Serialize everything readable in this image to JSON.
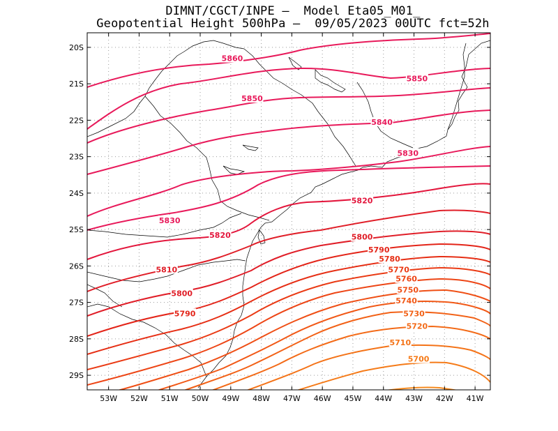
{
  "header": {
    "line1": "DIMNT/CGCT/INPE –  Model Eta05_M01_",
    "line2": "Geopotential Height 500hPa –  09/05/2023 00UTC fct=52h"
  },
  "map": {
    "lon_range": [
      -53.7,
      -40.5
    ],
    "lat_range": [
      -29.4,
      -19.6
    ],
    "lat_ticks": [
      {
        "lat": -20,
        "label": "20S"
      },
      {
        "lat": -21,
        "label": "21S"
      },
      {
        "lat": -22,
        "label": "22S"
      },
      {
        "lat": -23,
        "label": "23S"
      },
      {
        "lat": -24,
        "label": "24S"
      },
      {
        "lat": -25,
        "label": "25S"
      },
      {
        "lat": -26,
        "label": "26S"
      },
      {
        "lat": -27,
        "label": "27S"
      },
      {
        "lat": -28,
        "label": "28S"
      },
      {
        "lat": -29,
        "label": "29S"
      }
    ],
    "lon_ticks": [
      {
        "lon": -53,
        "label": "53W"
      },
      {
        "lon": -52,
        "label": "52W"
      },
      {
        "lon": -51,
        "label": "51W"
      },
      {
        "lon": -50,
        "label": "50W"
      },
      {
        "lon": -49,
        "label": "49W"
      },
      {
        "lon": -48,
        "label": "48W"
      },
      {
        "lon": -47,
        "label": "47W"
      },
      {
        "lon": -46,
        "label": "46W"
      },
      {
        "lon": -45,
        "label": "45W"
      },
      {
        "lon": -44,
        "label": "44W"
      },
      {
        "lon": -43,
        "label": "43W"
      },
      {
        "lon": -42,
        "label": "42W"
      },
      {
        "lon": -41,
        "label": "41W"
      }
    ],
    "gridlines": "dotted",
    "contour_interval": 10,
    "contour_labels": [
      {
        "value": "5860",
        "lon": -48.95,
        "lat": -20.3,
        "color": "#e8195a"
      },
      {
        "value": "5850",
        "lon": -42.9,
        "lat": -20.85,
        "color": "#e8195a"
      },
      {
        "value": "5850",
        "lon": -48.3,
        "lat": -21.4,
        "color": "#e8195a"
      },
      {
        "value": "5840",
        "lon": -44.05,
        "lat": -22.05,
        "color": "#e8195a"
      },
      {
        "value": "5830",
        "lon": -43.2,
        "lat": -22.9,
        "color": "#e8195a"
      },
      {
        "value": "5830",
        "lon": -51.0,
        "lat": -24.75,
        "color": "#e8195a"
      },
      {
        "value": "5820",
        "lon": -44.7,
        "lat": -24.2,
        "color": "#e3163c"
      },
      {
        "value": "5820",
        "lon": -49.35,
        "lat": -25.15,
        "color": "#e3163c"
      },
      {
        "value": "5810",
        "lon": -51.1,
        "lat": -26.1,
        "color": "#e01e28"
      },
      {
        "value": "5800",
        "lon": -44.7,
        "lat": -25.2,
        "color": "#e01e28"
      },
      {
        "value": "5800",
        "lon": -50.6,
        "lat": -26.75,
        "color": "#e01e28"
      },
      {
        "value": "5790",
        "lon": -44.15,
        "lat": -25.55,
        "color": "#e32418"
      },
      {
        "value": "5790",
        "lon": -50.5,
        "lat": -27.3,
        "color": "#e32418"
      },
      {
        "value": "5780",
        "lon": -43.8,
        "lat": -25.8,
        "color": "#e62e14"
      },
      {
        "value": "5770",
        "lon": -43.5,
        "lat": -26.1,
        "color": "#ea3a14"
      },
      {
        "value": "5760",
        "lon": -43.25,
        "lat": -26.35,
        "color": "#ed4515"
      },
      {
        "value": "5750",
        "lon": -43.2,
        "lat": -26.65,
        "color": "#ef4f15"
      },
      {
        "value": "5740",
        "lon": -43.25,
        "lat": -26.95,
        "color": "#f15816"
      },
      {
        "value": "5730",
        "lon": -43.0,
        "lat": -27.3,
        "color": "#f26116"
      },
      {
        "value": "5720",
        "lon": -42.9,
        "lat": -27.65,
        "color": "#f36a17"
      },
      {
        "value": "5710",
        "lon": -43.45,
        "lat": -28.1,
        "color": "#f47318"
      },
      {
        "value": "5700",
        "lon": -42.85,
        "lat": -28.55,
        "color": "#f57b19"
      }
    ]
  }
}
